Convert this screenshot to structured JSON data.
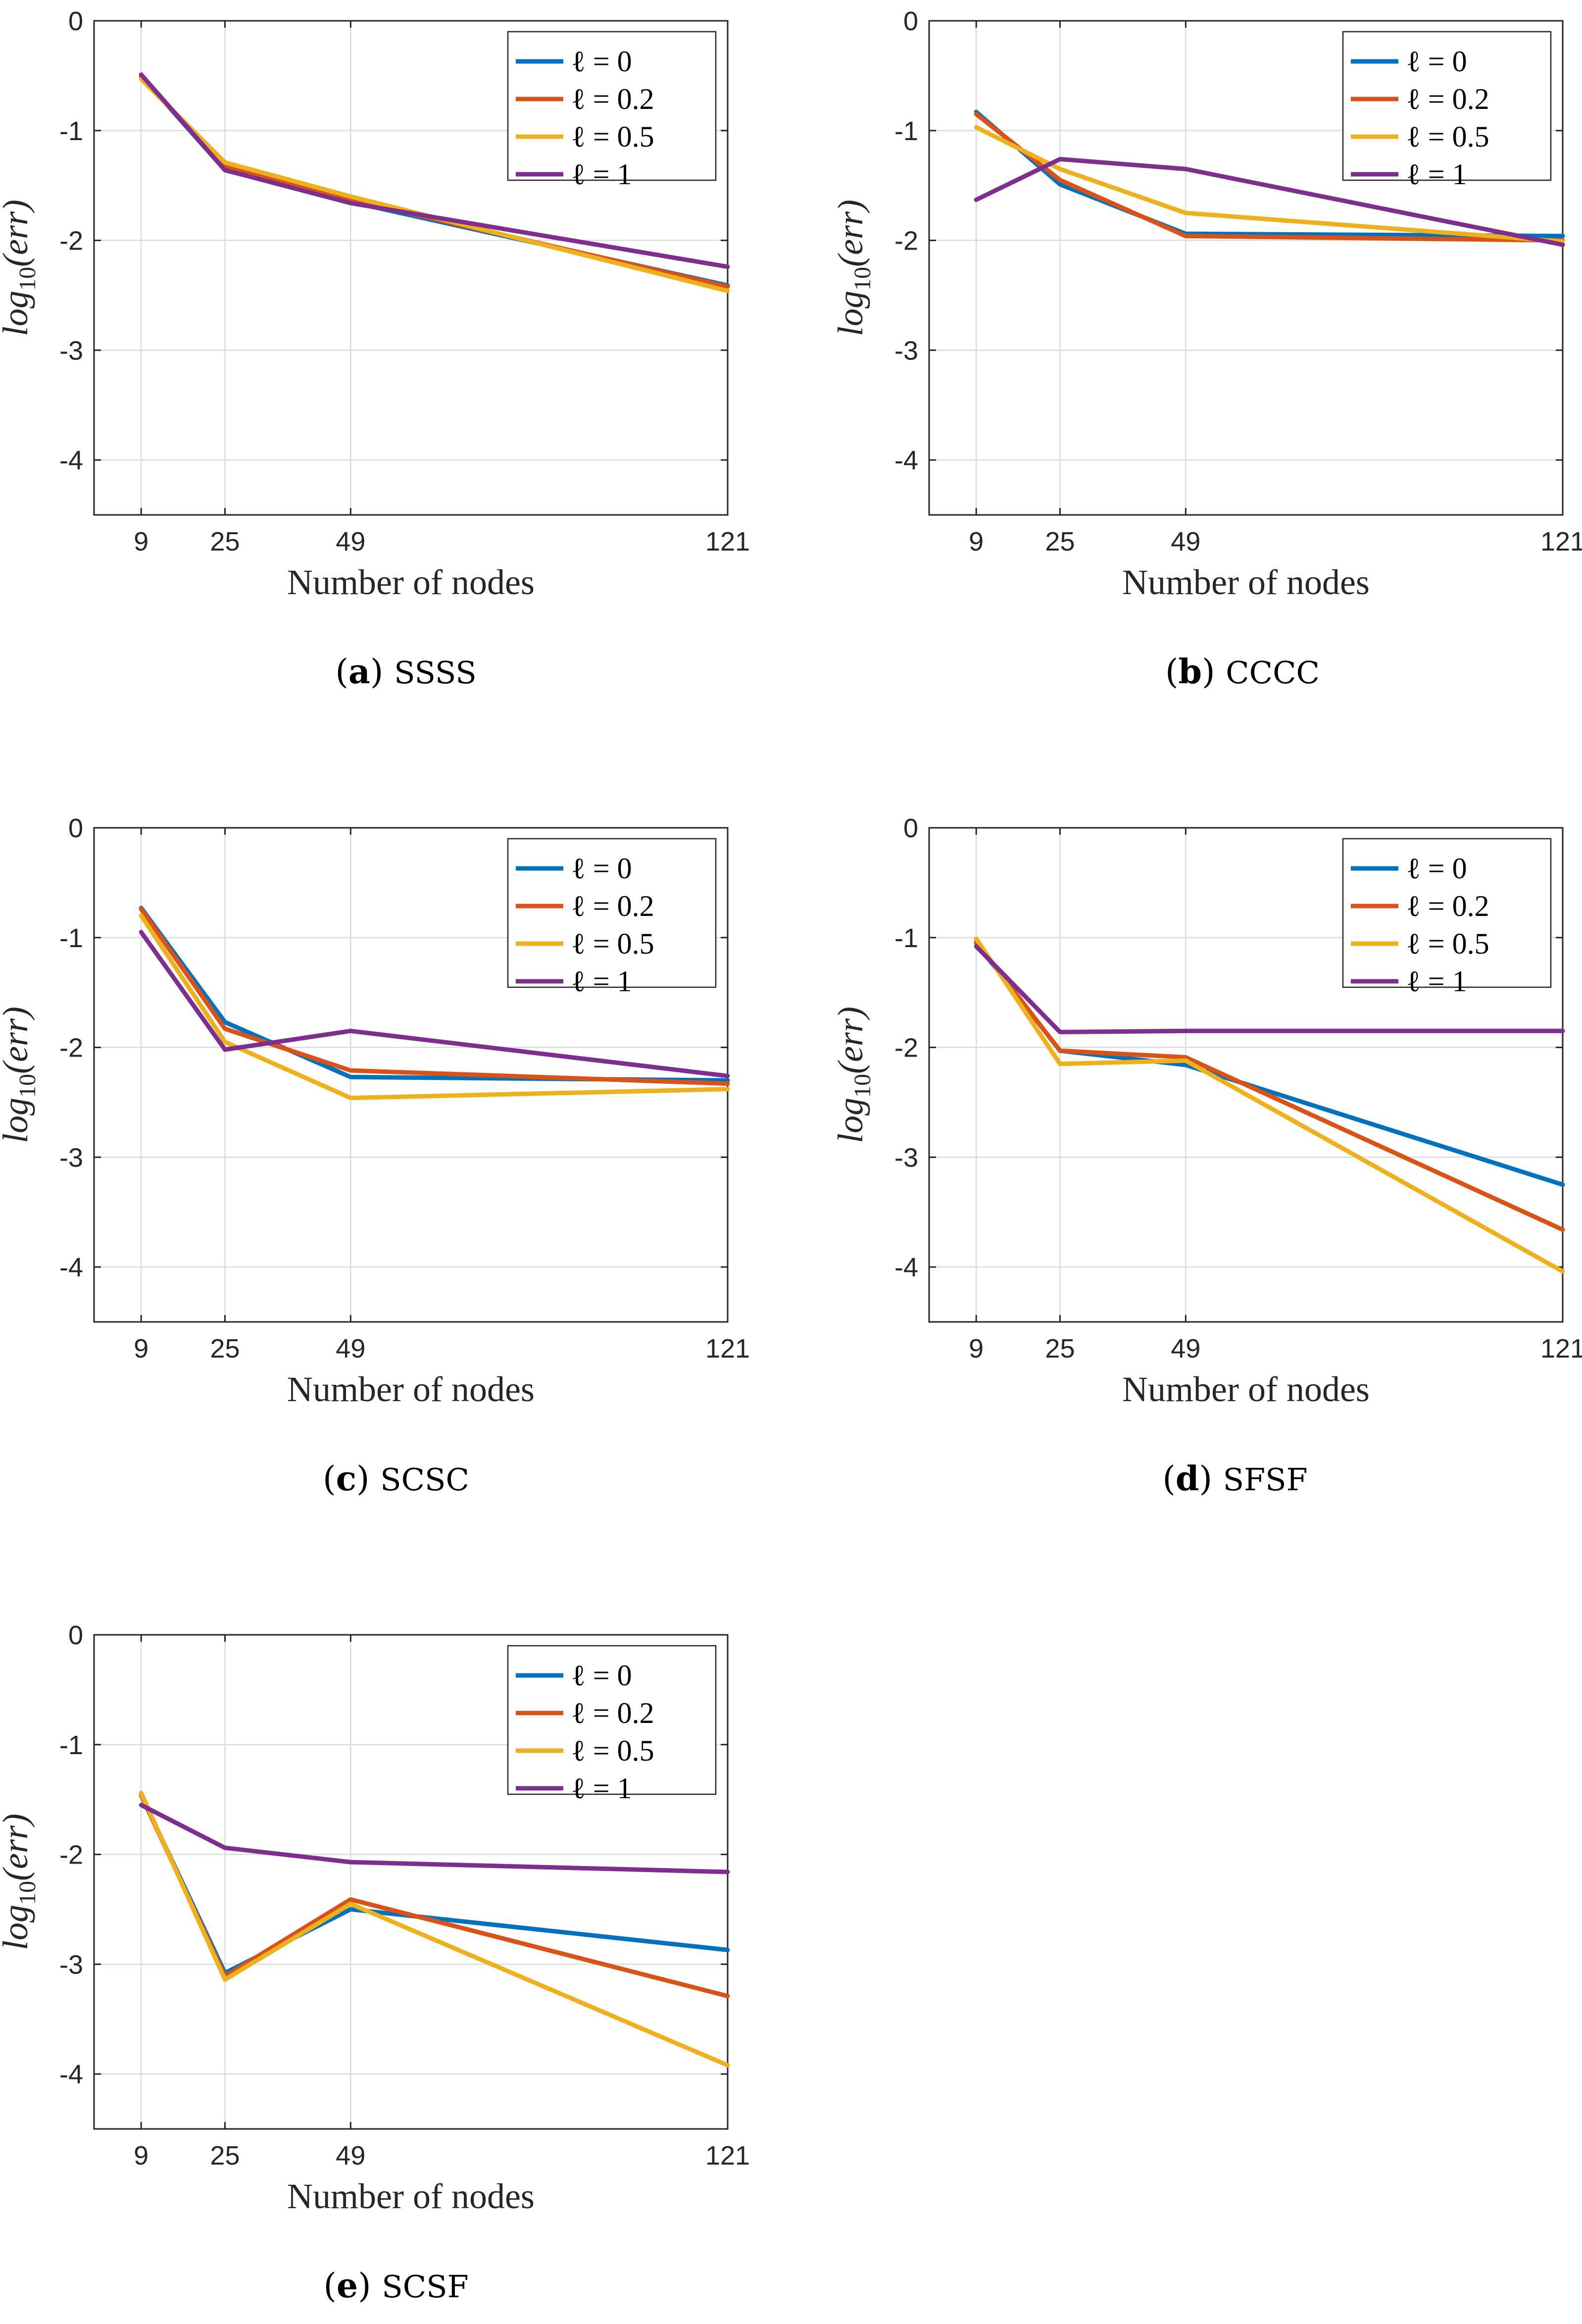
{
  "chart_data": [
    {
      "type": "line",
      "id": "a",
      "caption_letter": "a",
      "title": "SSSS",
      "xlabel": "Number of nodes",
      "ylabel_base": "log",
      "ylabel_sub": "10",
      "ylabel_arg": "(err)",
      "x": [
        9,
        25,
        49,
        121
      ],
      "xlim": [
        0,
        121
      ],
      "ylim": [
        -4.5,
        0
      ],
      "x_ticks": [
        "9",
        "25",
        "49",
        "121"
      ],
      "y_ticks": [
        "0",
        "-1",
        "-2",
        "-3",
        "-4"
      ],
      "grid": true,
      "legend_position": "top-right",
      "series": [
        {
          "name": "ℓ = 0",
          "color": "#0072BD",
          "values": [
            -0.5,
            -1.36,
            -1.65,
            -2.41
          ]
        },
        {
          "name": "ℓ = 0.2",
          "color": "#D95319",
          "values": [
            -0.51,
            -1.33,
            -1.63,
            -2.42
          ]
        },
        {
          "name": "ℓ = 0.5",
          "color": "#EDB120",
          "values": [
            -0.53,
            -1.29,
            -1.6,
            -2.46
          ]
        },
        {
          "name": "ℓ = 1",
          "color": "#7E2F8E",
          "values": [
            -0.49,
            -1.36,
            -1.66,
            -2.24
          ]
        }
      ]
    },
    {
      "type": "line",
      "id": "b",
      "caption_letter": "b",
      "title": "CCCC",
      "xlabel": "Number of nodes",
      "ylabel_base": "log",
      "ylabel_sub": "10",
      "ylabel_arg": "(err)",
      "x": [
        9,
        25,
        49,
        121
      ],
      "xlim": [
        0,
        121
      ],
      "ylim": [
        -4.5,
        0
      ],
      "x_ticks": [
        "9",
        "25",
        "49",
        "121"
      ],
      "y_ticks": [
        "0",
        "-1",
        "-2",
        "-3",
        "-4"
      ],
      "grid": true,
      "legend_position": "top-right",
      "series": [
        {
          "name": "ℓ = 0",
          "color": "#0072BD",
          "values": [
            -0.83,
            -1.49,
            -1.94,
            -1.96
          ]
        },
        {
          "name": "ℓ = 0.2",
          "color": "#D95319",
          "values": [
            -0.85,
            -1.45,
            -1.96,
            -2.0
          ]
        },
        {
          "name": "ℓ = 0.5",
          "color": "#EDB120",
          "values": [
            -0.97,
            -1.35,
            -1.75,
            -2.01
          ]
        },
        {
          "name": "ℓ = 1",
          "color": "#7E2F8E",
          "values": [
            -1.63,
            -1.26,
            -1.35,
            -2.04
          ]
        }
      ]
    },
    {
      "type": "line",
      "id": "c",
      "caption_letter": "c",
      "title": "SCSC",
      "xlabel": "Number of nodes",
      "ylabel_base": "log",
      "ylabel_sub": "10",
      "ylabel_arg": "(err)",
      "x": [
        9,
        25,
        49,
        121
      ],
      "xlim": [
        0,
        121
      ],
      "ylim": [
        -4.5,
        0
      ],
      "x_ticks": [
        "9",
        "25",
        "49",
        "121"
      ],
      "y_ticks": [
        "0",
        "-1",
        "-2",
        "-3",
        "-4"
      ],
      "grid": true,
      "legend_position": "top-right",
      "series": [
        {
          "name": "ℓ = 0",
          "color": "#0072BD",
          "values": [
            -0.73,
            -1.77,
            -2.27,
            -2.3
          ]
        },
        {
          "name": "ℓ = 0.2",
          "color": "#D95319",
          "values": [
            -0.74,
            -1.83,
            -2.21,
            -2.33
          ]
        },
        {
          "name": "ℓ = 0.5",
          "color": "#EDB120",
          "values": [
            -0.8,
            -1.95,
            -2.46,
            -2.38
          ]
        },
        {
          "name": "ℓ = 1",
          "color": "#7E2F8E",
          "values": [
            -0.95,
            -2.02,
            -1.85,
            -2.26
          ]
        }
      ]
    },
    {
      "type": "line",
      "id": "d",
      "caption_letter": "d",
      "title": "SFSF",
      "xlabel": "Number of nodes",
      "ylabel_base": "log",
      "ylabel_sub": "10",
      "ylabel_arg": "(err)",
      "x": [
        9,
        25,
        49,
        121
      ],
      "xlim": [
        0,
        121
      ],
      "ylim": [
        -4.5,
        0
      ],
      "x_ticks": [
        "9",
        "25",
        "49",
        "121"
      ],
      "y_ticks": [
        "0",
        "-1",
        "-2",
        "-3",
        "-4"
      ],
      "grid": true,
      "legend_position": "top-right",
      "series": [
        {
          "name": "ℓ = 0",
          "color": "#0072BD",
          "values": [
            -1.05,
            -2.03,
            -2.16,
            -3.25
          ]
        },
        {
          "name": "ℓ = 0.2",
          "color": "#D95319",
          "values": [
            -1.04,
            -2.03,
            -2.09,
            -3.66
          ]
        },
        {
          "name": "ℓ = 0.5",
          "color": "#EDB120",
          "values": [
            -1.01,
            -2.15,
            -2.12,
            -4.04
          ]
        },
        {
          "name": "ℓ = 1",
          "color": "#7E2F8E",
          "values": [
            -1.08,
            -1.86,
            -1.85,
            -1.85
          ]
        }
      ]
    },
    {
      "type": "line",
      "id": "e",
      "caption_letter": "e",
      "title": "SCSF",
      "xlabel": "Number of nodes",
      "ylabel_base": "log",
      "ylabel_sub": "10",
      "ylabel_arg": "(err)",
      "x": [
        9,
        25,
        49,
        121
      ],
      "xlim": [
        0,
        121
      ],
      "ylim": [
        -4.5,
        0
      ],
      "x_ticks": [
        "9",
        "25",
        "49",
        "121"
      ],
      "y_ticks": [
        "0",
        "-1",
        "-2",
        "-3",
        "-4"
      ],
      "grid": true,
      "legend_position": "top-right",
      "series": [
        {
          "name": "ℓ = 0",
          "color": "#0072BD",
          "values": [
            -1.46,
            -3.08,
            -2.5,
            -2.87
          ]
        },
        {
          "name": "ℓ = 0.2",
          "color": "#D95319",
          "values": [
            -1.46,
            -3.11,
            -2.41,
            -3.29
          ]
        },
        {
          "name": "ℓ = 0.5",
          "color": "#EDB120",
          "values": [
            -1.44,
            -3.14,
            -2.45,
            -3.92
          ]
        },
        {
          "name": "ℓ = 1",
          "color": "#7E2F8E",
          "values": [
            -1.55,
            -1.94,
            -2.07,
            -2.16
          ]
        }
      ]
    }
  ]
}
